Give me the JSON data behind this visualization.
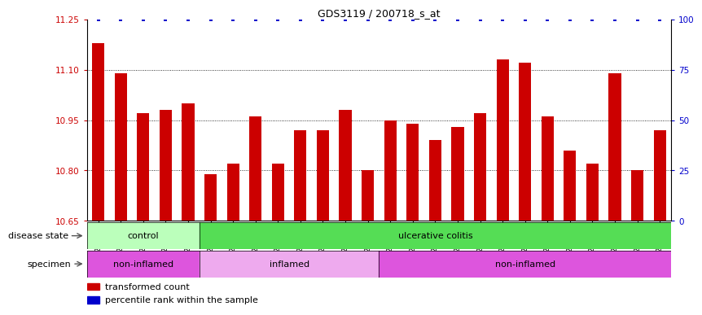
{
  "title": "GDS3119 / 200718_s_at",
  "samples": [
    "GSM240023",
    "GSM240024",
    "GSM240025",
    "GSM240026",
    "GSM240027",
    "GSM239617",
    "GSM239618",
    "GSM239714",
    "GSM239716",
    "GSM239717",
    "GSM239718",
    "GSM239719",
    "GSM239720",
    "GSM239723",
    "GSM239725",
    "GSM239726",
    "GSM239727",
    "GSM239729",
    "GSM239730",
    "GSM239731",
    "GSM239732",
    "GSM240022",
    "GSM240028",
    "GSM240029",
    "GSM240030",
    "GSM240031"
  ],
  "values": [
    11.18,
    11.09,
    10.97,
    10.98,
    11.0,
    10.79,
    10.82,
    10.96,
    10.82,
    10.92,
    10.92,
    10.98,
    10.8,
    10.95,
    10.94,
    10.89,
    10.93,
    10.97,
    11.13,
    11.12,
    10.96,
    10.86,
    10.82,
    11.09,
    10.8,
    10.92
  ],
  "percentile_values": [
    100,
    100,
    100,
    100,
    100,
    100,
    100,
    100,
    100,
    100,
    100,
    100,
    100,
    100,
    100,
    100,
    100,
    100,
    100,
    100,
    100,
    100,
    100,
    100,
    100,
    100
  ],
  "bar_color": "#cc0000",
  "percentile_color": "#0000cc",
  "ylim_left": [
    10.65,
    11.25
  ],
  "ylim_right": [
    0,
    100
  ],
  "yticks_left": [
    10.65,
    10.8,
    10.95,
    11.1,
    11.25
  ],
  "yticks_right": [
    0,
    25,
    50,
    75,
    100
  ],
  "plot_bg": "#ffffff",
  "disease_state_row": {
    "label": "disease state",
    "groups": [
      {
        "label": "control",
        "start": 0,
        "end": 5,
        "color": "#bbffbb"
      },
      {
        "label": "ulcerative colitis",
        "start": 5,
        "end": 26,
        "color": "#55dd55"
      }
    ]
  },
  "specimen_row": {
    "label": "specimen",
    "groups": [
      {
        "label": "non-inflamed",
        "start": 0,
        "end": 5,
        "color": "#dd55dd"
      },
      {
        "label": "inflamed",
        "start": 5,
        "end": 13,
        "color": "#eeaaee"
      },
      {
        "label": "non-inflamed",
        "start": 13,
        "end": 26,
        "color": "#dd55dd"
      }
    ]
  },
  "legend_items": [
    {
      "label": "transformed count",
      "color": "#cc0000"
    },
    {
      "label": "percentile rank within the sample",
      "color": "#0000cc"
    }
  ]
}
